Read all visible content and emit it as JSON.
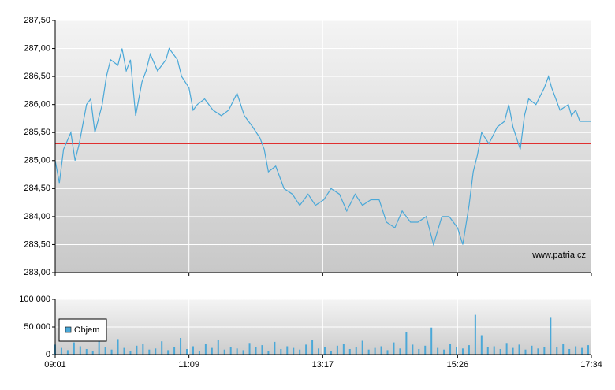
{
  "chart_data": {
    "type": "price-volume",
    "watermark": "www.patria.cz",
    "grid": true,
    "xlim": [
      541,
      1054
    ],
    "xticks": [
      {
        "value": 541,
        "label": "09:01"
      },
      {
        "value": 669,
        "label": "11:09"
      },
      {
        "value": 797,
        "label": "13:17"
      },
      {
        "value": 926,
        "label": "15:26"
      },
      {
        "value": 1054,
        "label": "17:34"
      }
    ],
    "ylim": [
      283,
      287.5
    ],
    "yticks": [
      {
        "value": 283,
        "label": "283,00"
      },
      {
        "value": 283.5,
        "label": "283,50"
      },
      {
        "value": 284,
        "label": "284,00"
      },
      {
        "value": 284.5,
        "label": "284,50"
      },
      {
        "value": 285,
        "label": "285,00"
      },
      {
        "value": 285.5,
        "label": "285,50"
      },
      {
        "value": 286,
        "label": "286,00"
      },
      {
        "value": 286.5,
        "label": "286,50"
      },
      {
        "value": 287,
        "label": "287,00"
      },
      {
        "value": 287.5,
        "label": "287,50"
      }
    ],
    "ref_line": 285.3,
    "ref_color": "#e03030",
    "x": [
      541,
      545,
      549,
      556,
      560,
      564,
      571,
      575,
      579,
      586,
      590,
      594,
      601,
      605,
      609,
      613,
      618,
      624,
      628,
      632,
      639,
      647,
      650,
      654,
      658,
      662,
      669,
      673,
      677,
      684,
      692,
      700,
      707,
      715,
      722,
      730,
      737,
      741,
      745,
      752,
      760,
      768,
      775,
      783,
      790,
      798,
      805,
      813,
      820,
      828,
      835,
      843,
      851,
      858,
      866,
      873,
      881,
      888,
      896,
      903,
      911,
      918,
      926,
      931,
      937,
      941,
      945,
      949,
      956,
      964,
      971,
      975,
      979,
      986,
      990,
      994,
      1001,
      1009,
      1013,
      1016,
      1024,
      1032,
      1035,
      1039,
      1043,
      1054
    ],
    "price": {
      "color": "#4aa8d8",
      "values": [
        285.0,
        284.6,
        285.2,
        285.5,
        285.0,
        285.3,
        286.0,
        286.1,
        285.5,
        286.0,
        286.5,
        286.8,
        286.7,
        287.0,
        286.6,
        286.8,
        285.8,
        286.4,
        286.6,
        286.9,
        286.6,
        286.8,
        287.0,
        286.9,
        286.8,
        286.5,
        286.3,
        285.9,
        286.0,
        286.1,
        285.9,
        285.8,
        285.9,
        286.2,
        285.8,
        285.6,
        285.4,
        285.2,
        284.8,
        284.9,
        284.5,
        284.4,
        284.2,
        284.4,
        284.2,
        284.3,
        284.5,
        284.4,
        284.1,
        284.4,
        284.2,
        284.3,
        284.3,
        283.9,
        283.8,
        284.1,
        283.9,
        283.9,
        284.0,
        283.5,
        284.0,
        284.0,
        283.8,
        283.5,
        284.2,
        284.8,
        285.1,
        285.5,
        285.3,
        285.6,
        285.7,
        286.0,
        285.6,
        285.2,
        285.8,
        286.1,
        286.0,
        286.3,
        286.5,
        286.3,
        285.9,
        286.0,
        285.8,
        285.9,
        285.7,
        285.7
      ]
    },
    "volume": {
      "name": "Objem",
      "color": "#4aa8d8",
      "ylim": [
        0,
        100000
      ],
      "yticks": [
        0,
        {
          "value": 50000,
          "label": "50 000"
        },
        {
          "value": 100000,
          "label": "100 000"
        }
      ],
      "x": [
        541,
        547,
        553,
        559,
        565,
        571,
        577,
        583,
        589,
        595,
        601,
        607,
        613,
        619,
        625,
        631,
        637,
        643,
        649,
        655,
        661,
        667,
        673,
        679,
        685,
        691,
        697,
        703,
        709,
        715,
        721,
        727,
        733,
        739,
        745,
        751,
        757,
        763,
        769,
        775,
        781,
        787,
        793,
        799,
        805,
        811,
        817,
        823,
        829,
        835,
        841,
        847,
        853,
        859,
        865,
        871,
        877,
        883,
        889,
        895,
        901,
        907,
        913,
        919,
        925,
        931,
        937,
        943,
        949,
        955,
        961,
        967,
        973,
        979,
        985,
        991,
        997,
        1003,
        1009,
        1015,
        1021,
        1027,
        1033,
        1039,
        1045,
        1051
      ],
      "values": [
        18000,
        12000,
        8000,
        22000,
        15000,
        10000,
        6000,
        25000,
        14000,
        9000,
        28000,
        12000,
        7000,
        16000,
        20000,
        9000,
        11000,
        24000,
        8000,
        13000,
        30000,
        10000,
        15000,
        7000,
        19000,
        12000,
        26000,
        9000,
        14000,
        11000,
        8000,
        21000,
        13000,
        17000,
        6000,
        23000,
        10000,
        15000,
        12000,
        9000,
        18000,
        27000,
        11000,
        14000,
        7000,
        16000,
        20000,
        10000,
        13000,
        25000,
        9000,
        12000,
        15000,
        8000,
        22000,
        11000,
        40000,
        18000,
        10000,
        16000,
        49000,
        12000,
        9000,
        20000,
        14000,
        11000,
        17000,
        72000,
        35000,
        13000,
        15000,
        10000,
        21000,
        12000,
        18000,
        9000,
        16000,
        11000,
        14000,
        68000,
        13000,
        19000,
        10000,
        15000,
        12000,
        17000
      ]
    }
  }
}
